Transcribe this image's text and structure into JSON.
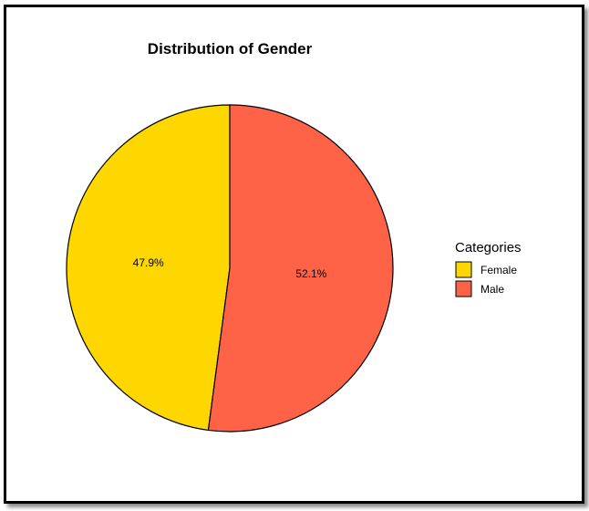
{
  "chart_data": {
    "type": "pie",
    "title": "Distribution of Gender",
    "legend_title": "Categories",
    "legend_position": "right",
    "categories": [
      "Female",
      "Male"
    ],
    "values": [
      47.9,
      52.1
    ],
    "labels": [
      "47.9%",
      "52.1%"
    ],
    "colors": [
      "#FFD700",
      "#FF6347"
    ]
  }
}
